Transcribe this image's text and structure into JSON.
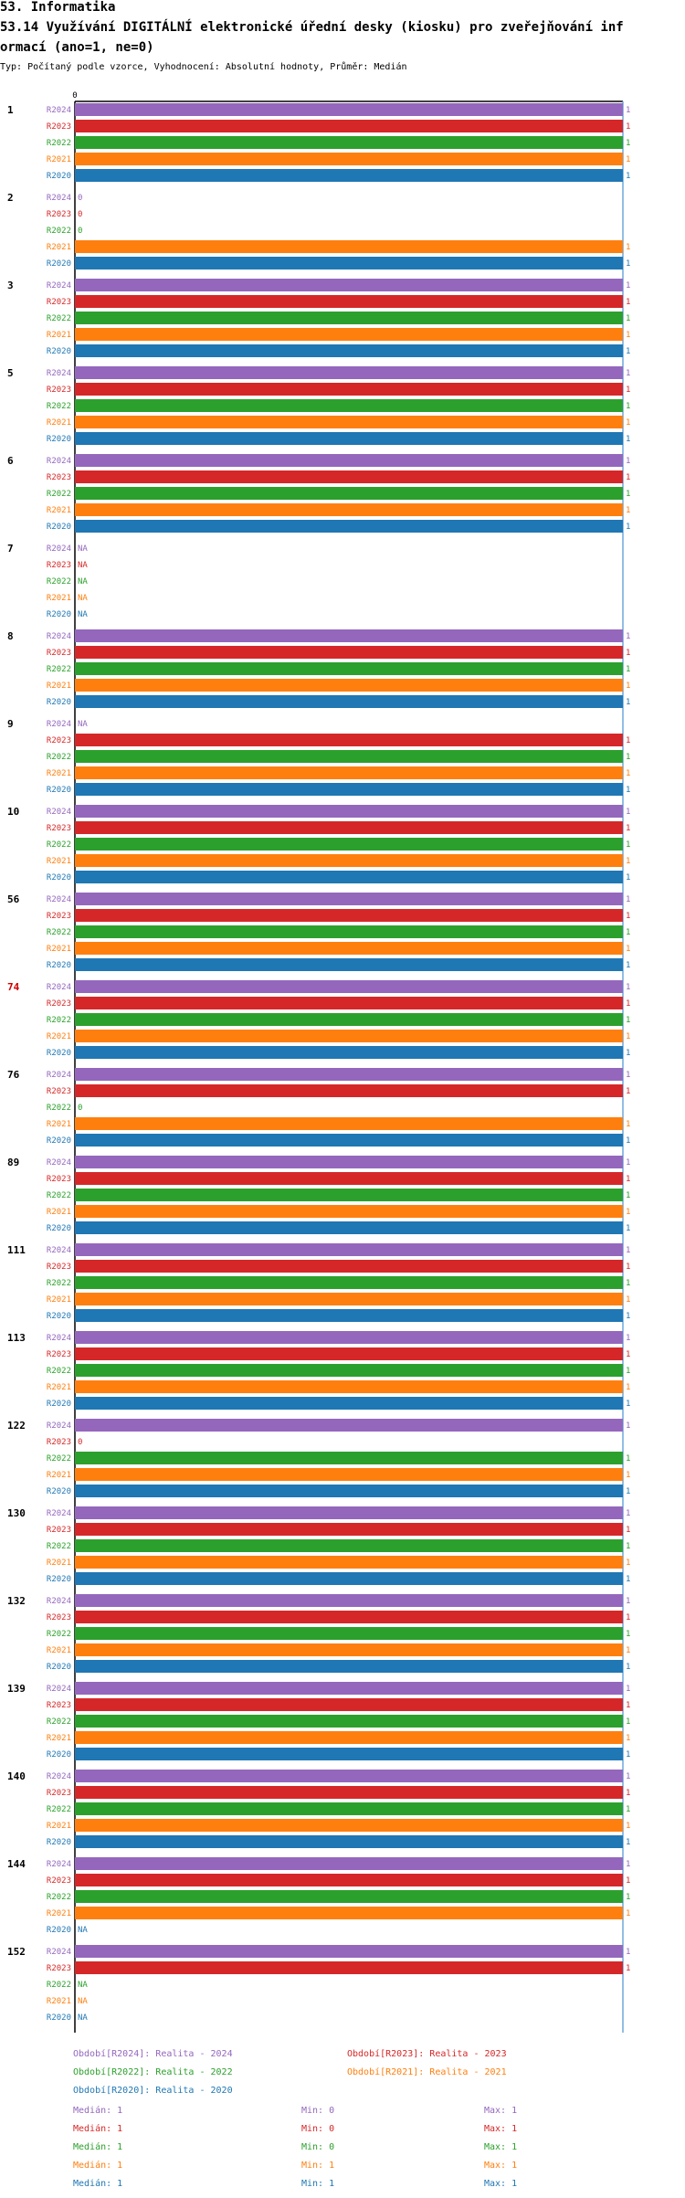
{
  "header": {
    "line1": "53. Informatika",
    "line2": "53.14 Využívání DIGITÁLNÍ elektronické úřední desky (kiosku) pro zveřejňování inf",
    "line3": "ormací (ano=1, ne=0)",
    "subtitle": "Typ: Počítaný podle vzorce, Vyhodnocení: Absolutní hodnoty, Průměr: Medián"
  },
  "colors": {
    "R2024": "#9467bd",
    "R2023": "#d62728",
    "R2022": "#2ca02c",
    "R2021": "#ff7f0e",
    "R2020": "#1f77b4",
    "axis": "#000000",
    "median_line": "#6fa8dc",
    "highlight": "#cc0000"
  },
  "chart_data": {
    "type": "bar",
    "orientation": "horizontal",
    "axis_tick": "0",
    "xlim": [
      0,
      1
    ],
    "series_names": [
      "R2024",
      "R2023",
      "R2022",
      "R2021",
      "R2020"
    ],
    "groups": [
      {
        "label": "1",
        "values": [
          "1",
          "1",
          "1",
          "1",
          "1"
        ]
      },
      {
        "label": "2",
        "values": [
          "0",
          "0",
          "0",
          "1",
          "1"
        ]
      },
      {
        "label": "3",
        "values": [
          "1",
          "1",
          "1",
          "1",
          "1"
        ]
      },
      {
        "label": "5",
        "values": [
          "1",
          "1",
          "1",
          "1",
          "1"
        ]
      },
      {
        "label": "6",
        "values": [
          "1",
          "1",
          "1",
          "1",
          "1"
        ]
      },
      {
        "label": "7",
        "values": [
          "NA",
          "NA",
          "NA",
          "NA",
          "NA"
        ]
      },
      {
        "label": "8",
        "values": [
          "1",
          "1",
          "1",
          "1",
          "1"
        ]
      },
      {
        "label": "9",
        "values": [
          "NA",
          "1",
          "1",
          "1",
          "1"
        ]
      },
      {
        "label": "10",
        "values": [
          "1",
          "1",
          "1",
          "1",
          "1"
        ]
      },
      {
        "label": "56",
        "values": [
          "1",
          "1",
          "1",
          "1",
          "1"
        ]
      },
      {
        "label": "74",
        "values": [
          "1",
          "1",
          "1",
          "1",
          "1"
        ],
        "highlight": true
      },
      {
        "label": "76",
        "values": [
          "1",
          "1",
          "0",
          "1",
          "1"
        ]
      },
      {
        "label": "89",
        "values": [
          "1",
          "1",
          "1",
          "1",
          "1"
        ]
      },
      {
        "label": "111",
        "values": [
          "1",
          "1",
          "1",
          "1",
          "1"
        ]
      },
      {
        "label": "113",
        "values": [
          "1",
          "1",
          "1",
          "1",
          "1"
        ]
      },
      {
        "label": "122",
        "values": [
          "1",
          "0",
          "1",
          "1",
          "1"
        ]
      },
      {
        "label": "130",
        "values": [
          "1",
          "1",
          "1",
          "1",
          "1"
        ]
      },
      {
        "label": "132",
        "values": [
          "1",
          "1",
          "1",
          "1",
          "1"
        ]
      },
      {
        "label": "139",
        "values": [
          "1",
          "1",
          "1",
          "1",
          "1"
        ]
      },
      {
        "label": "140",
        "values": [
          "1",
          "1",
          "1",
          "1",
          "1"
        ]
      },
      {
        "label": "144",
        "values": [
          "1",
          "1",
          "1",
          "1",
          "NA"
        ]
      },
      {
        "label": "152",
        "values": [
          "1",
          "1",
          "NA",
          "NA",
          "NA"
        ]
      }
    ]
  },
  "legend": {
    "periods": [
      {
        "text": "Období[R2024]: Realita - 2024",
        "series": "R2024"
      },
      {
        "text": "Období[R2023]: Realita - 2023",
        "series": "R2023"
      },
      {
        "text": "Období[R2022]: Realita - 2022",
        "series": "R2022"
      },
      {
        "text": "Období[R2021]: Realita - 2021",
        "series": "R2021"
      },
      {
        "text": "Období[R2020]: Realita - 2020",
        "series": "R2020"
      }
    ],
    "stats": [
      {
        "series": "R2024",
        "median": "Medián: 1",
        "min": "Min: 0",
        "max": "Max: 1"
      },
      {
        "series": "R2023",
        "median": "Medián: 1",
        "min": "Min: 0",
        "max": "Max: 1"
      },
      {
        "series": "R2022",
        "median": "Medián: 1",
        "min": "Min: 0",
        "max": "Max: 1"
      },
      {
        "series": "R2021",
        "median": "Medián: 1",
        "min": "Min: 1",
        "max": "Max: 1"
      },
      {
        "series": "R2020",
        "median": "Medián: 1",
        "min": "Min: 1",
        "max": "Max: 1"
      }
    ]
  }
}
